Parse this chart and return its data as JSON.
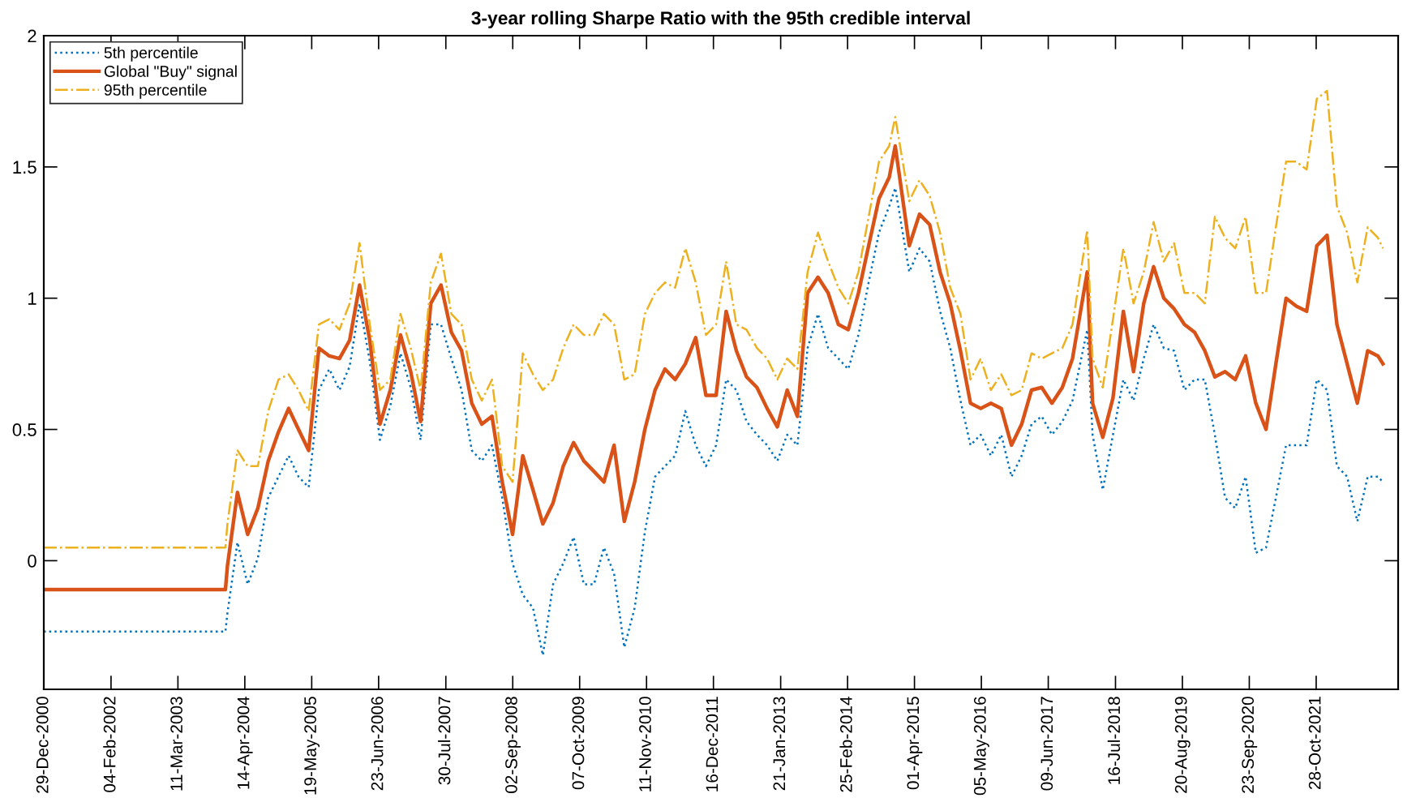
{
  "chart_data": {
    "type": "line",
    "title": "3-year rolling Sharpe Ratio with the 95th credible interval",
    "x": [
      "2000-12-29",
      "2003-12-20",
      "2004-01-01",
      "2004-03-01",
      "2004-05-01",
      "2004-07-01",
      "2004-09-01",
      "2004-11-01",
      "2005-01-01",
      "2005-03-01",
      "2005-05-01",
      "2005-07-01",
      "2005-09-01",
      "2005-11-01",
      "2006-01-01",
      "2006-03-01",
      "2006-05-01",
      "2006-07-01",
      "2006-09-01",
      "2006-11-01",
      "2007-01-01",
      "2007-03-01",
      "2007-05-01",
      "2007-07-01",
      "2007-09-01",
      "2007-11-01",
      "2008-01-01",
      "2008-03-01",
      "2008-05-01",
      "2008-07-01",
      "2008-09-01",
      "2008-11-01",
      "2009-01-01",
      "2009-03-01",
      "2009-05-01",
      "2009-07-01",
      "2009-09-01",
      "2009-11-01",
      "2010-01-01",
      "2010-03-01",
      "2010-05-01",
      "2010-07-01",
      "2010-09-01",
      "2010-11-01",
      "2011-01-01",
      "2011-03-01",
      "2011-05-01",
      "2011-07-01",
      "2011-09-01",
      "2011-11-01",
      "2012-01-01",
      "2012-03-01",
      "2012-05-01",
      "2012-07-01",
      "2012-09-01",
      "2012-11-01",
      "2013-01-01",
      "2013-03-01",
      "2013-05-01",
      "2013-07-01",
      "2013-09-01",
      "2013-11-01",
      "2014-01-01",
      "2014-03-01",
      "2014-05-01",
      "2014-07-01",
      "2014-09-01",
      "2014-11-01",
      "2014-12-07",
      "2015-03-01",
      "2015-05-01",
      "2015-07-01",
      "2015-09-01",
      "2015-11-01",
      "2016-01-01",
      "2016-03-01",
      "2016-05-01",
      "2016-07-01",
      "2016-09-01",
      "2016-11-01",
      "2017-01-01",
      "2017-03-01",
      "2017-05-01",
      "2017-07-01",
      "2017-09-01",
      "2017-11-01",
      "2018-01-28",
      "2018-03-01",
      "2018-05-01",
      "2018-07-01",
      "2018-09-01",
      "2018-11-01",
      "2019-01-01",
      "2019-03-01",
      "2019-05-01",
      "2019-07-01",
      "2019-09-01",
      "2019-11-01",
      "2020-01-01",
      "2020-03-01",
      "2020-05-01",
      "2020-07-01",
      "2020-09-01",
      "2020-11-01",
      "2021-01-01",
      "2021-03-01",
      "2021-05-01",
      "2021-07-01",
      "2021-09-01",
      "2021-11-01",
      "2022-01-01",
      "2022-03-01",
      "2022-05-01",
      "2022-07-01",
      "2022-09-01",
      "2022-11-01",
      "2022-12-01"
    ],
    "series": [
      {
        "name": "5th percentile",
        "color": "#0072bd",
        "line_style": "dotted",
        "values": [
          -0.27,
          -0.27,
          -0.2,
          0.07,
          -0.09,
          0.01,
          0.24,
          0.32,
          0.4,
          0.32,
          0.28,
          0.65,
          0.73,
          0.65,
          0.74,
          0.98,
          0.76,
          0.46,
          0.59,
          0.79,
          0.66,
          0.46,
          0.9,
          0.9,
          0.77,
          0.65,
          0.42,
          0.38,
          0.44,
          0.24,
          -0.01,
          -0.13,
          -0.18,
          -0.36,
          -0.09,
          -0.01,
          0.09,
          -0.09,
          -0.09,
          0.05,
          -0.05,
          -0.33,
          -0.18,
          0.11,
          0.32,
          0.36,
          0.4,
          0.57,
          0.44,
          0.36,
          0.44,
          0.69,
          0.65,
          0.53,
          0.48,
          0.44,
          0.38,
          0.48,
          0.44,
          0.81,
          0.94,
          0.81,
          0.77,
          0.73,
          0.86,
          1.06,
          1.25,
          1.35,
          1.42,
          1.1,
          1.19,
          1.14,
          0.95,
          0.81,
          0.61,
          0.44,
          0.48,
          0.4,
          0.48,
          0.32,
          0.4,
          0.52,
          0.55,
          0.48,
          0.53,
          0.61,
          0.88,
          0.48,
          0.27,
          0.48,
          0.69,
          0.61,
          0.77,
          0.9,
          0.81,
          0.8,
          0.65,
          0.69,
          0.69,
          0.48,
          0.24,
          0.2,
          0.32,
          0.03,
          0.05,
          0.24,
          0.44,
          0.44,
          0.44,
          0.69,
          0.65,
          0.36,
          0.32,
          0.15,
          0.32,
          0.32,
          0.3
        ]
      },
      {
        "name": "Global \"Buy\" signal",
        "color": "#d95319",
        "line_style": "solid",
        "values": [
          -0.11,
          -0.11,
          -0.02,
          0.26,
          0.1,
          0.2,
          0.38,
          0.49,
          0.58,
          0.5,
          0.42,
          0.81,
          0.78,
          0.77,
          0.84,
          1.05,
          0.84,
          0.52,
          0.65,
          0.86,
          0.72,
          0.53,
          0.98,
          1.05,
          0.87,
          0.8,
          0.6,
          0.52,
          0.55,
          0.3,
          0.1,
          0.4,
          0.27,
          0.14,
          0.22,
          0.36,
          0.45,
          0.38,
          0.34,
          0.3,
          0.44,
          0.15,
          0.3,
          0.5,
          0.65,
          0.73,
          0.69,
          0.75,
          0.85,
          0.63,
          0.63,
          0.95,
          0.8,
          0.7,
          0.66,
          0.58,
          0.51,
          0.65,
          0.55,
          1.02,
          1.08,
          1.02,
          0.9,
          0.88,
          1.02,
          1.2,
          1.38,
          1.46,
          1.58,
          1.2,
          1.32,
          1.28,
          1.1,
          0.98,
          0.8,
          0.6,
          0.58,
          0.6,
          0.58,
          0.44,
          0.52,
          0.65,
          0.66,
          0.6,
          0.66,
          0.77,
          1.1,
          0.6,
          0.47,
          0.62,
          0.95,
          0.72,
          0.98,
          1.12,
          1.0,
          0.96,
          0.9,
          0.87,
          0.8,
          0.7,
          0.72,
          0.69,
          0.78,
          0.6,
          0.5,
          0.75,
          1.0,
          0.97,
          0.95,
          1.2,
          1.24,
          0.9,
          0.75,
          0.6,
          0.8,
          0.78,
          0.75
        ]
      },
      {
        "name": "95th percentile",
        "color": "#edb120",
        "line_style": "dashdot",
        "values": [
          0.05,
          0.05,
          0.14,
          0.42,
          0.36,
          0.36,
          0.57,
          0.69,
          0.71,
          0.65,
          0.57,
          0.9,
          0.92,
          0.88,
          0.98,
          1.21,
          0.9,
          0.65,
          0.69,
          0.94,
          0.81,
          0.65,
          1.06,
          1.17,
          0.94,
          0.9,
          0.69,
          0.61,
          0.69,
          0.36,
          0.3,
          0.79,
          0.71,
          0.65,
          0.69,
          0.81,
          0.9,
          0.86,
          0.86,
          0.94,
          0.9,
          0.69,
          0.71,
          0.94,
          1.02,
          1.06,
          1.04,
          1.19,
          1.06,
          0.86,
          0.9,
          1.14,
          0.9,
          0.88,
          0.81,
          0.77,
          0.69,
          0.77,
          0.73,
          1.1,
          1.25,
          1.14,
          1.04,
          0.98,
          1.1,
          1.31,
          1.52,
          1.58,
          1.69,
          1.37,
          1.45,
          1.39,
          1.25,
          1.04,
          0.94,
          0.69,
          0.77,
          0.65,
          0.71,
          0.63,
          0.65,
          0.79,
          0.77,
          0.79,
          0.81,
          0.9,
          1.26,
          0.77,
          0.66,
          0.92,
          1.19,
          0.98,
          1.1,
          1.29,
          1.14,
          1.21,
          1.02,
          1.02,
          0.98,
          1.31,
          1.23,
          1.19,
          1.31,
          1.02,
          1.02,
          1.27,
          1.52,
          1.52,
          1.49,
          1.76,
          1.79,
          1.35,
          1.25,
          1.06,
          1.27,
          1.23,
          1.19
        ]
      }
    ],
    "xlim": [
      "2000-12-29",
      "2023-03-02"
    ],
    "xticks": [
      {
        "value": "2000-12-29",
        "label": "29-Dec-2000"
      },
      {
        "value": "2002-02-04",
        "label": "04-Feb-2002"
      },
      {
        "value": "2003-03-11",
        "label": "11-Mar-2003"
      },
      {
        "value": "2004-04-14",
        "label": "14-Apr-2004"
      },
      {
        "value": "2005-05-19",
        "label": "19-May-2005"
      },
      {
        "value": "2006-06-23",
        "label": "23-Jun-2006"
      },
      {
        "value": "2007-07-30",
        "label": "30-Jul-2007"
      },
      {
        "value": "2008-09-02",
        "label": "02-Sep-2008"
      },
      {
        "value": "2009-10-07",
        "label": "07-Oct-2009"
      },
      {
        "value": "2010-11-11",
        "label": "11-Nov-2010"
      },
      {
        "value": "2011-12-16",
        "label": "16-Dec-2011"
      },
      {
        "value": "2013-01-21",
        "label": "21-Jan-2013"
      },
      {
        "value": "2014-02-25",
        "label": "25-Feb-2014"
      },
      {
        "value": "2015-04-01",
        "label": "01-Apr-2015"
      },
      {
        "value": "2016-05-05",
        "label": "05-May-2016"
      },
      {
        "value": "2017-06-09",
        "label": "09-Jun-2017"
      },
      {
        "value": "2018-07-16",
        "label": "16-Jul-2018"
      },
      {
        "value": "2019-08-20",
        "label": "20-Aug-2019"
      },
      {
        "value": "2020-09-23",
        "label": "23-Sep-2020"
      },
      {
        "value": "2021-10-28",
        "label": "28-Oct-2021"
      }
    ],
    "ylim": [
      -0.49,
      2
    ],
    "yticks": [
      0,
      0.5,
      1,
      1.5,
      2
    ],
    "legend": "top left"
  }
}
